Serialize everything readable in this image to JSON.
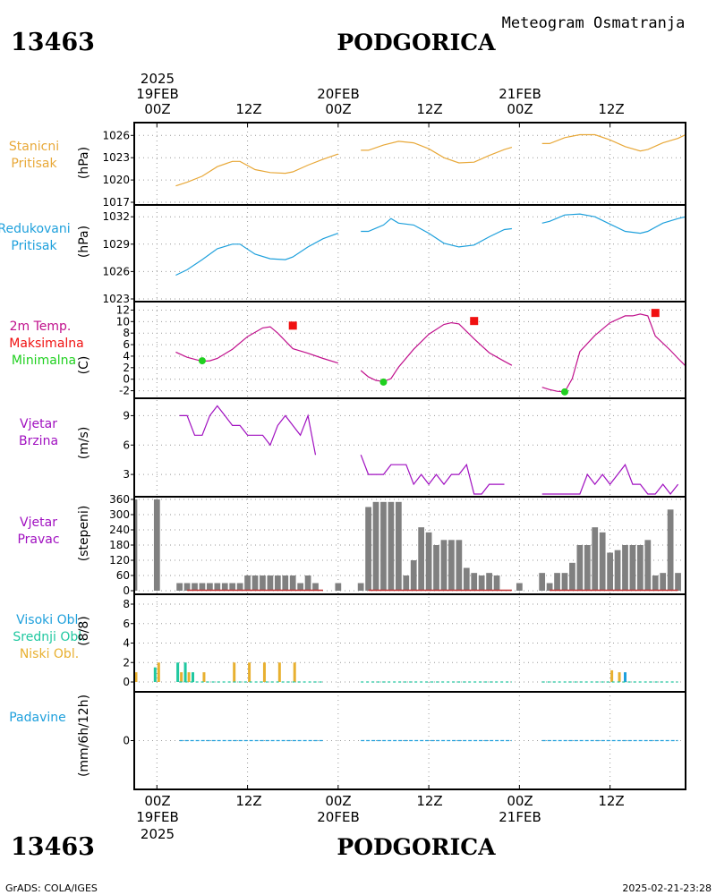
{
  "header": {
    "station_id": "13463",
    "station_name": "PODGORICA",
    "subtitle": "Meteogram Osmatranja"
  },
  "footer": {
    "station_id": "13463",
    "station_name": "PODGORICA",
    "credit": "GrADS: COLA/IGES",
    "timestamp": "2025-02-21-23:28"
  },
  "time_axis": {
    "top_year": "2025",
    "bottom_year": "2025",
    "date_labels": [
      "19FEB",
      "20FEB",
      "21FEB"
    ],
    "hour_labels": [
      "00Z",
      "12Z",
      "00Z",
      "12Z",
      "00Z",
      "12Z"
    ],
    "hours_range": [
      -3,
      70
    ],
    "hour_ticks": [
      0,
      12,
      24,
      36,
      48,
      60
    ]
  },
  "panels": {
    "pressure": {
      "label1": "Stanicni",
      "label2": "Pritisak",
      "unit": "(hPa)",
      "ticks": [
        "1026",
        "1023",
        "1020",
        "1017"
      ]
    },
    "reduced": {
      "label1": "Redukovani",
      "label2": "Pritisak",
      "unit": "(hPa)",
      "ticks": [
        "1032",
        "1029",
        "1026",
        "1023"
      ]
    },
    "temp": {
      "label1": "2m Temp.",
      "label2": "Maksimalna",
      "label3": "Minimalna",
      "unit": "(C)",
      "ticks": [
        "12",
        "10",
        "8",
        "6",
        "4",
        "2",
        "0",
        "-2"
      ]
    },
    "wind_speed": {
      "label1": "Vjetar",
      "label2": "Brzina",
      "unit": "(m/s)",
      "ticks": [
        "9",
        "6",
        "3"
      ]
    },
    "wind_dir": {
      "label1": "Vjetar",
      "label2": "Pravac",
      "unit": "(stepeni)",
      "ticks": [
        "360",
        "300",
        "240",
        "180",
        "120",
        "60",
        "0"
      ]
    },
    "clouds": {
      "label1": "Visoki Obl.",
      "label2": "Srednji Obl.",
      "label3": "Niski Obl.",
      "unit": "(8/8)",
      "ticks": [
        "8",
        "6",
        "4",
        "2",
        "0"
      ]
    },
    "precip": {
      "label1": "Padavine",
      "unit": "(mm/6h/12h)",
      "ticks": [
        "0"
      ]
    }
  },
  "colors": {
    "pressure": "#e8a838",
    "reduced": "#1ea0dc",
    "temp_line": "#c0108c",
    "tmax": "#f01010",
    "tmin": "#20d020",
    "wind_speed": "#a010c0",
    "wind_dir_bar": "#808080",
    "cloud_low": "#e8b030",
    "cloud_mid": "#20c8a0",
    "cloud_high": "#1ea0dc",
    "precip": "#1ea0dc"
  },
  "chart_data": {
    "type": "line",
    "x_unit": "hours since 2025-02-19 00Z",
    "series": [
      {
        "name": "Stanicni Pritisak",
        "ylim": [
          1017,
          1027
        ],
        "segments": [
          [
            [
              2.5,
              1019.2
            ],
            [
              4,
              1019.7
            ],
            [
              6,
              1020.5
            ],
            [
              8,
              1021.8
            ],
            [
              10,
              1022.5
            ],
            [
              11,
              1022.5
            ],
            [
              13,
              1021.4
            ],
            [
              15,
              1021.0
            ],
            [
              17,
              1020.9
            ],
            [
              18,
              1021.1
            ],
            [
              20,
              1022.0
            ],
            [
              22,
              1022.8
            ],
            [
              24,
              1023.5
            ]
          ],
          [
            [
              27,
              1024.0
            ],
            [
              28,
              1024.0
            ],
            [
              30,
              1024.7
            ],
            [
              32,
              1025.2
            ],
            [
              34,
              1025.0
            ],
            [
              36,
              1024.2
            ],
            [
              38,
              1023.0
            ],
            [
              40,
              1022.3
            ],
            [
              42,
              1022.4
            ],
            [
              44,
              1023.3
            ],
            [
              46,
              1024.1
            ],
            [
              47,
              1024.4
            ]
          ],
          [
            [
              51,
              1024.9
            ],
            [
              52,
              1024.9
            ],
            [
              54,
              1025.7
            ],
            [
              56,
              1026.1
            ],
            [
              58,
              1026.1
            ],
            [
              60,
              1025.4
            ],
            [
              62,
              1024.5
            ],
            [
              64,
              1023.9
            ],
            [
              65,
              1024.1
            ],
            [
              67,
              1025.0
            ],
            [
              69,
              1025.6
            ],
            [
              70,
              1026.1
            ]
          ]
        ]
      },
      {
        "name": "Redukovani Pritisak",
        "ylim": [
          1023,
          1033
        ],
        "segments": [
          [
            [
              2.5,
              1025.6
            ],
            [
              4,
              1026.2
            ],
            [
              6,
              1027.3
            ],
            [
              8,
              1028.5
            ],
            [
              10,
              1029.0
            ],
            [
              11,
              1029.0
            ],
            [
              13,
              1027.9
            ],
            [
              15,
              1027.4
            ],
            [
              17,
              1027.3
            ],
            [
              18,
              1027.6
            ],
            [
              20,
              1028.7
            ],
            [
              22,
              1029.6
            ],
            [
              24,
              1030.2
            ]
          ],
          [
            [
              27,
              1030.4
            ],
            [
              28,
              1030.4
            ],
            [
              30,
              1031.1
            ],
            [
              31,
              1031.8
            ],
            [
              32,
              1031.3
            ],
            [
              34,
              1031.1
            ],
            [
              36,
              1030.2
            ],
            [
              38,
              1029.1
            ],
            [
              40,
              1028.7
            ],
            [
              42,
              1028.9
            ],
            [
              44,
              1029.8
            ],
            [
              46,
              1030.6
            ],
            [
              47,
              1030.7
            ]
          ],
          [
            [
              51,
              1031.3
            ],
            [
              52,
              1031.5
            ],
            [
              54,
              1032.2
            ],
            [
              56,
              1032.3
            ],
            [
              58,
              1032.0
            ],
            [
              60,
              1031.2
            ],
            [
              62,
              1030.4
            ],
            [
              64,
              1030.2
            ],
            [
              65,
              1030.4
            ],
            [
              67,
              1031.3
            ],
            [
              69,
              1031.8
            ],
            [
              70,
              1032.0
            ]
          ]
        ]
      },
      {
        "name": "2m Temp.",
        "ylim": [
          -3,
          13
        ],
        "segments": [
          [
            [
              2.5,
              4.7
            ],
            [
              4,
              3.8
            ],
            [
              6,
              3.1
            ],
            [
              7,
              3.2
            ],
            [
              8,
              3.6
            ],
            [
              10,
              5.2
            ],
            [
              12,
              7.4
            ],
            [
              14,
              8.9
            ],
            [
              15,
              9.1
            ],
            [
              16,
              8.0
            ],
            [
              18,
              5.3
            ],
            [
              20,
              4.5
            ],
            [
              22,
              3.6
            ],
            [
              24,
              2.8
            ]
          ],
          [
            [
              27,
              1.5
            ],
            [
              28,
              0.4
            ],
            [
              29,
              -0.2
            ],
            [
              30,
              -0.4
            ],
            [
              31,
              0.1
            ],
            [
              32,
              2.1
            ],
            [
              34,
              5.2
            ],
            [
              36,
              7.8
            ],
            [
              38,
              9.5
            ],
            [
              39,
              9.8
            ],
            [
              40,
              9.6
            ],
            [
              42,
              7.0
            ],
            [
              44,
              4.6
            ],
            [
              46,
              3.1
            ],
            [
              47,
              2.4
            ]
          ],
          [
            [
              51,
              -1.4
            ],
            [
              52,
              -1.8
            ],
            [
              53,
              -2.1
            ],
            [
              54,
              -2.2
            ],
            [
              55,
              0.1
            ],
            [
              56,
              4.8
            ],
            [
              58,
              7.6
            ],
            [
              60,
              9.8
            ],
            [
              62,
              11.0
            ],
            [
              63,
              11.0
            ],
            [
              64,
              11.3
            ],
            [
              65,
              11.0
            ],
            [
              66,
              7.5
            ],
            [
              68,
              5.0
            ],
            [
              69,
              3.6
            ],
            [
              70,
              2.3
            ]
          ]
        ]
      },
      {
        "name": "Vjetar Brzina",
        "ylim": [
          1,
          10.5
        ],
        "segments": [
          [
            [
              3,
              9
            ],
            [
              4,
              9
            ],
            [
              5,
              7
            ],
            [
              6,
              7
            ],
            [
              7,
              9
            ],
            [
              8,
              10
            ],
            [
              9,
              9
            ],
            [
              10,
              8
            ],
            [
              11,
              8
            ],
            [
              12,
              7
            ],
            [
              13,
              7
            ],
            [
              14,
              7
            ],
            [
              15,
              6
            ],
            [
              16,
              8
            ],
            [
              17,
              9
            ],
            [
              18,
              8
            ],
            [
              19,
              7
            ],
            [
              20,
              9
            ],
            [
              21,
              5
            ]
          ],
          [
            [
              27,
              5
            ],
            [
              28,
              3
            ],
            [
              29,
              3
            ],
            [
              30,
              3
            ],
            [
              31,
              4
            ],
            [
              32,
              4
            ],
            [
              33,
              4
            ],
            [
              34,
              2
            ],
            [
              35,
              3
            ],
            [
              36,
              2
            ],
            [
              37,
              3
            ],
            [
              38,
              2
            ],
            [
              39,
              3
            ],
            [
              40,
              3
            ],
            [
              41,
              4
            ],
            [
              42,
              1
            ],
            [
              43,
              1
            ],
            [
              44,
              2
            ],
            [
              45,
              2
            ],
            [
              46,
              2
            ]
          ],
          [
            [
              51,
              1
            ],
            [
              52,
              1
            ],
            [
              53,
              1
            ],
            [
              54,
              1
            ],
            [
              55,
              1
            ],
            [
              56,
              1
            ],
            [
              57,
              3
            ],
            [
              58,
              2
            ],
            [
              59,
              3
            ],
            [
              60,
              2
            ],
            [
              61,
              3
            ],
            [
              62,
              4
            ],
            [
              63,
              2
            ],
            [
              64,
              2
            ],
            [
              65,
              1
            ],
            [
              66,
              1
            ],
            [
              67,
              2
            ],
            [
              68,
              1
            ],
            [
              69,
              2
            ]
          ]
        ]
      }
    ],
    "extremes": {
      "tmax": [
        [
          18,
          9.3
        ],
        [
          42,
          10.1
        ],
        [
          66,
          11.5
        ]
      ],
      "tmin": [
        [
          6,
          3.2
        ],
        [
          30,
          -0.5
        ],
        [
          54,
          -2.2
        ]
      ]
    },
    "wind_direction": {
      "ylim": [
        0,
        360
      ],
      "hours": [
        -3,
        0,
        3,
        4,
        5,
        6,
        7,
        8,
        9,
        10,
        11,
        12,
        13,
        14,
        15,
        16,
        17,
        18,
        19,
        20,
        21,
        24,
        27,
        28,
        29,
        30,
        31,
        32,
        33,
        34,
        35,
        36,
        37,
        38,
        39,
        40,
        41,
        42,
        43,
        44,
        45,
        48,
        51,
        52,
        53,
        54,
        55,
        56,
        57,
        58,
        59,
        60,
        61,
        62,
        63,
        64,
        65,
        66,
        67,
        68,
        69
      ],
      "values": [
        360,
        360,
        30,
        30,
        30,
        30,
        30,
        30,
        30,
        30,
        30,
        60,
        60,
        60,
        60,
        60,
        60,
        60,
        30,
        60,
        30,
        30,
        30,
        330,
        350,
        350,
        350,
        350,
        60,
        120,
        250,
        230,
        180,
        200,
        200,
        200,
        90,
        70,
        60,
        70,
        60,
        30,
        70,
        30,
        70,
        70,
        110,
        180,
        180,
        250,
        230,
        150,
        160,
        180,
        180,
        180,
        200,
        60,
        70,
        320,
        70
      ]
    },
    "clouds": {
      "ylim": [
        0,
        8
      ],
      "low": [
        [
          -3,
          1
        ],
        [
          0,
          2
        ],
        [
          3,
          1
        ],
        [
          4,
          1
        ],
        [
          6,
          1
        ],
        [
          10,
          2
        ],
        [
          12,
          2
        ],
        [
          14,
          2
        ],
        [
          16,
          2
        ],
        [
          18,
          2
        ],
        [
          60,
          1.2
        ],
        [
          61,
          1
        ]
      ],
      "mid": [
        [
          0,
          1.5
        ],
        [
          3,
          2
        ],
        [
          4,
          2
        ],
        [
          5,
          1
        ]
      ],
      "high": [
        [
          62,
          1
        ]
      ]
    },
    "precip": {
      "ylim": [
        -1,
        1
      ],
      "value": 0
    }
  }
}
